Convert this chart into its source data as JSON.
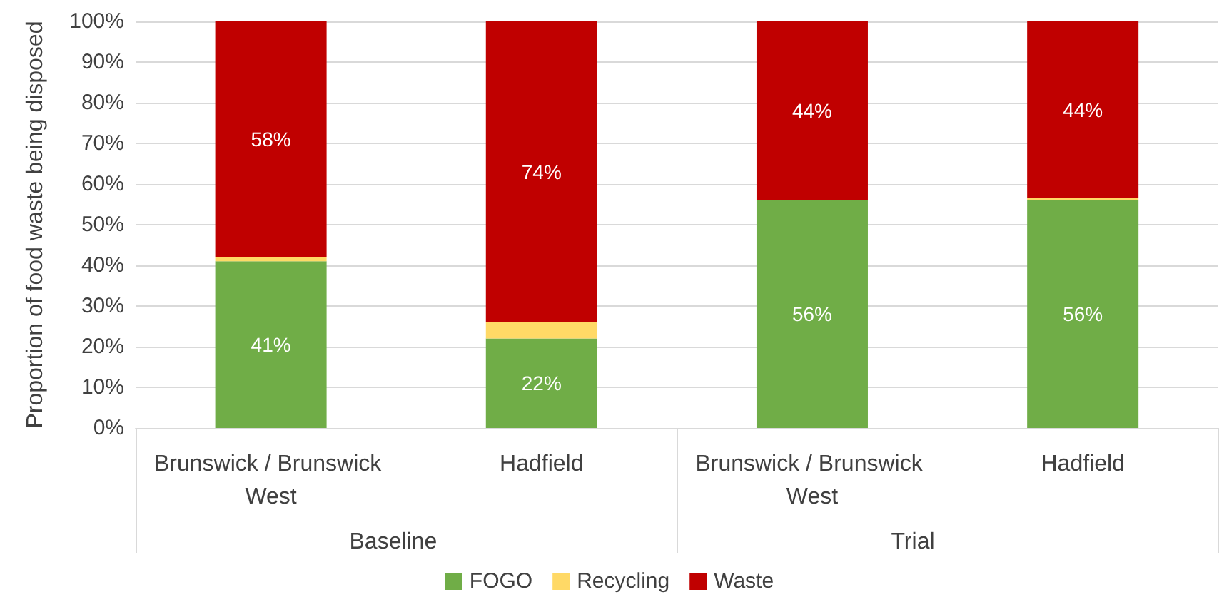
{
  "chart_data": {
    "type": "bar",
    "stacked": true,
    "ylabel": "Proportion of food waste being disposed",
    "categories": [
      "Brunswick / Brunswick West",
      "Hadfield",
      "Brunswick / Brunswick West",
      "Hadfield"
    ],
    "series": [
      {
        "name": "FOGO",
        "color": "#70ad47",
        "values": [
          41,
          22,
          56,
          56
        ],
        "value_labels": [
          "41%",
          "22%",
          "56%",
          "56%"
        ]
      },
      {
        "name": "Recycling",
        "color": "#ffd966",
        "values": [
          1,
          4,
          0,
          0.5
        ],
        "value_labels": [
          null,
          null,
          null,
          null
        ]
      },
      {
        "name": "Waste",
        "color": "#c00000",
        "values": [
          58,
          74,
          44,
          43.5
        ],
        "value_labels": [
          "58%",
          "74%",
          "44%",
          "44%"
        ]
      }
    ],
    "ylim": [
      0,
      100
    ],
    "yticks": [
      {
        "value": 0,
        "label": "0%"
      },
      {
        "value": 10,
        "label": "10%"
      },
      {
        "value": 20,
        "label": "20%"
      },
      {
        "value": 30,
        "label": "30%"
      },
      {
        "value": 40,
        "label": "40%"
      },
      {
        "value": 50,
        "label": "50%"
      },
      {
        "value": 60,
        "label": "60%"
      },
      {
        "value": 70,
        "label": "70%"
      },
      {
        "value": 80,
        "label": "80%"
      },
      {
        "value": 90,
        "label": "90%"
      },
      {
        "value": 100,
        "label": "100%"
      }
    ],
    "annotations": [
      "Baseline",
      "Trial"
    ],
    "grid": "y",
    "legend": "bottom"
  }
}
